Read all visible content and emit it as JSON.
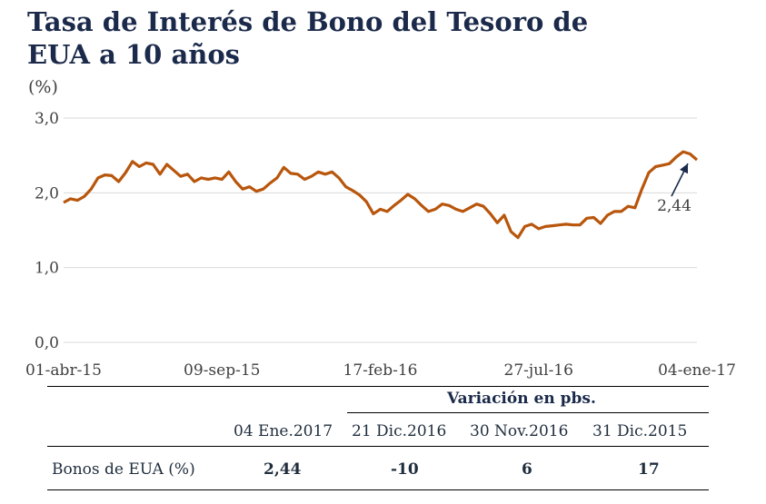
{
  "title": "Tasa de Interés de Bono del Tesoro de EUA a 10 años",
  "unit": "(%)",
  "colors": {
    "line": "#b8560c",
    "grid": "#d9d9d9",
    "text": "#404040",
    "title": "#1b2a4a"
  },
  "chart_data": {
    "type": "line",
    "title": "Tasa de Interés de Bono del Tesoro de EUA a 10 años",
    "ylabel": "(%)",
    "xlabel": "",
    "ylim": [
      0,
      3
    ],
    "yticks": [
      "0,0",
      "1,0",
      "2,0",
      "3,0"
    ],
    "xticks": [
      "01-abr-15",
      "09-sep-15",
      "17-feb-16",
      "27-jul-16",
      "04-ene-17"
    ],
    "xlim": [
      "2015-04-01",
      "2017-01-04"
    ],
    "grid": true,
    "annotation": {
      "text": "2,44",
      "x": "2017-01-04",
      "y": 2.44
    },
    "series": [
      {
        "x": [
          "2015-04-01",
          "2015-04-08",
          "2015-04-15",
          "2015-04-22",
          "2015-04-29",
          "2015-05-06",
          "2015-05-13",
          "2015-05-20",
          "2015-05-27",
          "2015-06-03",
          "2015-06-10",
          "2015-06-17",
          "2015-06-24",
          "2015-07-01",
          "2015-07-08",
          "2015-07-15",
          "2015-07-22",
          "2015-07-29",
          "2015-08-05",
          "2015-08-12",
          "2015-08-19",
          "2015-08-26",
          "2015-09-02",
          "2015-09-09",
          "2015-09-16",
          "2015-09-23",
          "2015-09-30",
          "2015-10-07",
          "2015-10-14",
          "2015-10-21",
          "2015-10-28",
          "2015-11-04",
          "2015-11-11",
          "2015-11-18",
          "2015-11-25",
          "2015-12-02",
          "2015-12-09",
          "2015-12-16",
          "2015-12-23",
          "2015-12-30",
          "2016-01-06",
          "2016-01-13",
          "2016-01-20",
          "2016-01-27",
          "2016-02-03",
          "2016-02-10",
          "2016-02-17",
          "2016-02-24",
          "2016-03-02",
          "2016-03-09",
          "2016-03-16",
          "2016-03-23",
          "2016-03-30",
          "2016-04-06",
          "2016-04-13",
          "2016-04-20",
          "2016-04-27",
          "2016-05-04",
          "2016-05-11",
          "2016-05-18",
          "2016-05-25",
          "2016-06-01",
          "2016-06-08",
          "2016-06-15",
          "2016-06-22",
          "2016-06-29",
          "2016-07-06",
          "2016-07-13",
          "2016-07-20",
          "2016-07-27",
          "2016-08-03",
          "2016-08-10",
          "2016-08-17",
          "2016-08-24",
          "2016-08-31",
          "2016-09-07",
          "2016-09-14",
          "2016-09-21",
          "2016-09-28",
          "2016-10-05",
          "2016-10-12",
          "2016-10-19",
          "2016-10-26",
          "2016-11-02",
          "2016-11-09",
          "2016-11-16",
          "2016-11-23",
          "2016-11-30",
          "2016-12-07",
          "2016-12-14",
          "2016-12-21",
          "2016-12-28",
          "2017-01-04"
        ],
        "values": [
          1.87,
          1.92,
          1.9,
          1.95,
          2.05,
          2.2,
          2.24,
          2.23,
          2.15,
          2.27,
          2.42,
          2.35,
          2.4,
          2.38,
          2.25,
          2.38,
          2.3,
          2.22,
          2.25,
          2.15,
          2.2,
          2.18,
          2.2,
          2.18,
          2.28,
          2.15,
          2.05,
          2.08,
          2.02,
          2.05,
          2.13,
          2.2,
          2.34,
          2.26,
          2.25,
          2.18,
          2.22,
          2.28,
          2.25,
          2.28,
          2.2,
          2.08,
          2.03,
          1.97,
          1.88,
          1.72,
          1.78,
          1.75,
          1.83,
          1.9,
          1.98,
          1.92,
          1.83,
          1.75,
          1.78,
          1.85,
          1.83,
          1.78,
          1.75,
          1.8,
          1.85,
          1.82,
          1.72,
          1.6,
          1.7,
          1.48,
          1.4,
          1.55,
          1.58,
          1.52,
          1.55,
          1.56,
          1.57,
          1.58,
          1.57,
          1.57,
          1.66,
          1.67,
          1.59,
          1.7,
          1.75,
          1.75,
          1.82,
          1.8,
          2.05,
          2.27,
          2.35,
          2.37,
          2.39,
          2.48,
          2.55,
          2.52,
          2.44
        ]
      }
    ]
  },
  "table": {
    "group_header": "Variación en pbs.",
    "columns": [
      "04 Ene.2017",
      "21 Dic.2016",
      "30 Nov.2016",
      "31 Dic.2015"
    ],
    "row_label": "Bonos de EUA (%)",
    "row_values": [
      "2,44",
      "-10",
      "6",
      "17"
    ]
  }
}
